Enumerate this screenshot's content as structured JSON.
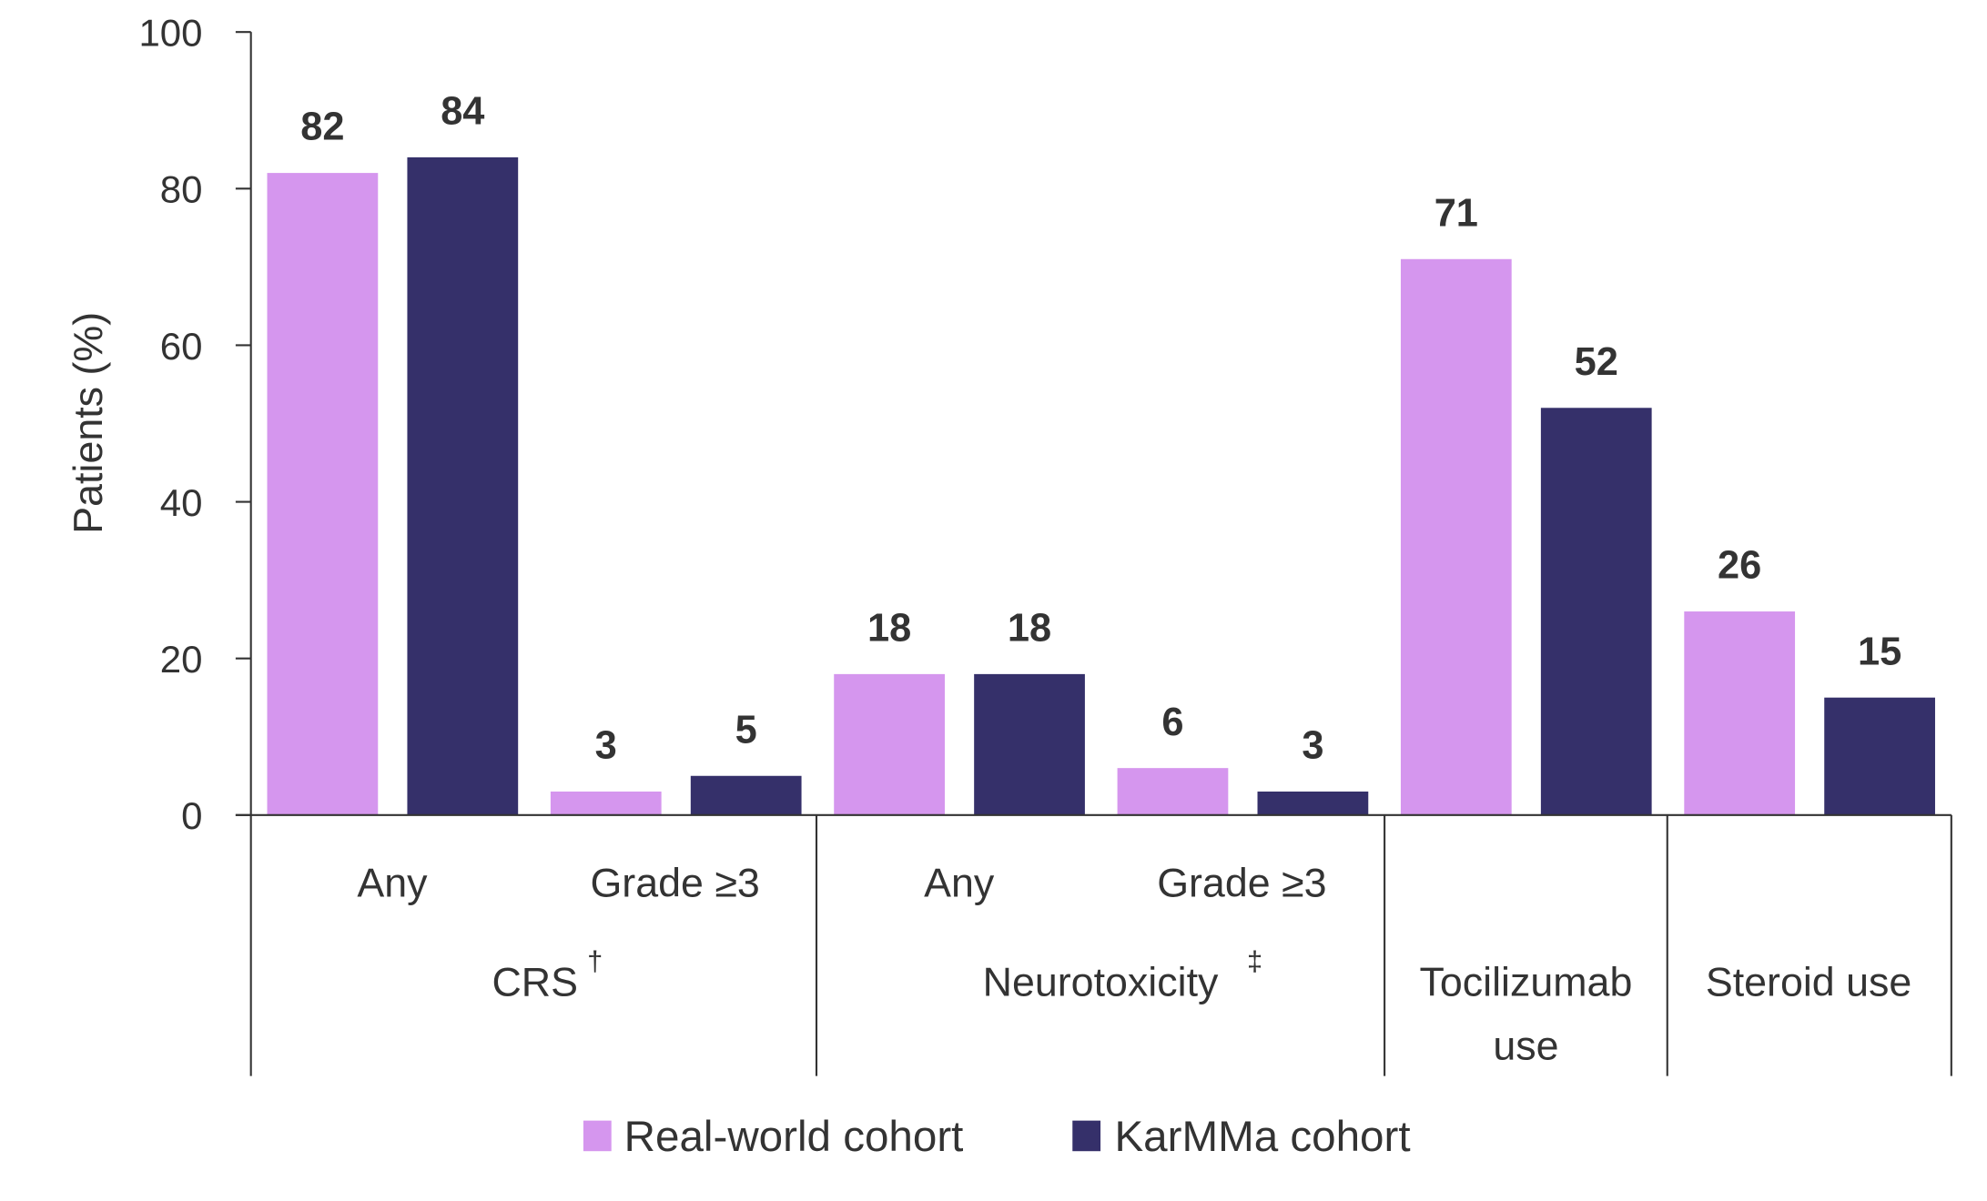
{
  "chart_data": {
    "type": "bar",
    "ylabel": "Patients (%)",
    "ylim": [
      0,
      100
    ],
    "yticks": [
      "0",
      "20",
      "40",
      "60",
      "80",
      "100"
    ],
    "grid": false,
    "legend_position": "bottom",
    "categories": [
      "Any",
      "Grade ≥3",
      "Any",
      "Grade ≥3",
      "Tocilizumab use",
      "Steroid use"
    ],
    "groups": [
      {
        "label": "CRS",
        "sup": "†",
        "subcategories": [
          "Any",
          "Grade ≥3"
        ]
      },
      {
        "label": "Neurotoxicity",
        "sup": "‡",
        "subcategories": [
          "Any",
          "Grade ≥3"
        ]
      },
      {
        "label_lines": [
          "Tocilizumab",
          "use"
        ],
        "subcategories": []
      },
      {
        "label": "Steroid use",
        "subcategories": []
      }
    ],
    "series": [
      {
        "name": "Real-world cohort",
        "color": "#d596ee",
        "values": [
          82,
          3,
          18,
          6,
          71,
          26
        ]
      },
      {
        "name": "KarMMa cohort",
        "color": "#35306a",
        "values": [
          84,
          5,
          18,
          3,
          52,
          15
        ]
      }
    ]
  }
}
